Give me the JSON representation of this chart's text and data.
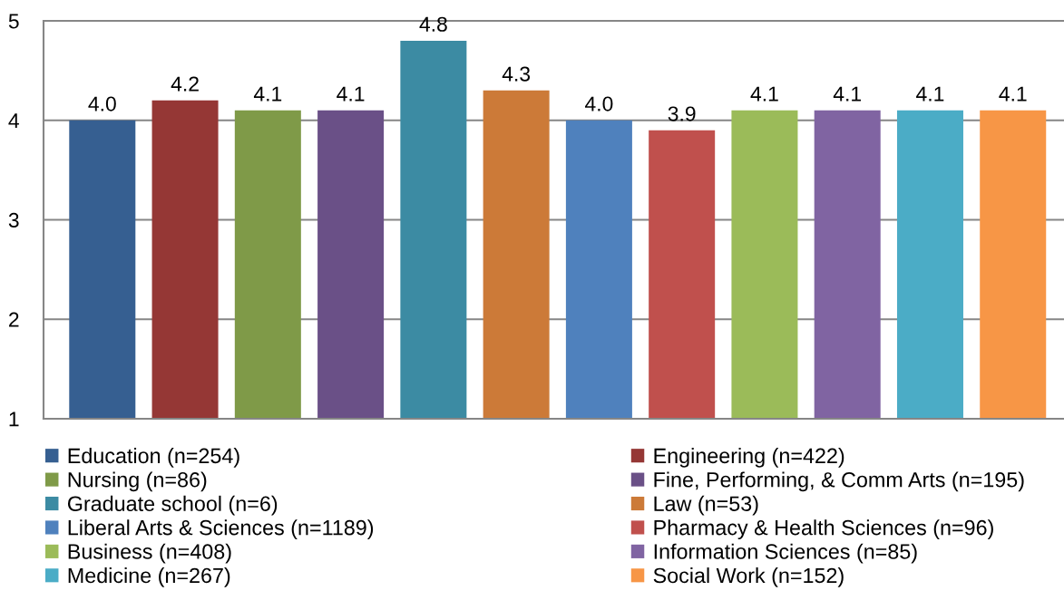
{
  "chart_data": {
    "type": "bar",
    "categories": [
      null
    ],
    "ylim": [
      1,
      5
    ],
    "yticks": [
      1,
      2,
      3,
      4,
      5
    ],
    "grid": "y",
    "legend": "bottom",
    "series": [
      {
        "name": "Education (n=254)",
        "color": "#365F91",
        "values": [
          4.0
        ],
        "value_labels": [
          "4.0"
        ]
      },
      {
        "name": "Engineering (n=422)",
        "color": "#953735",
        "values": [
          4.2
        ],
        "value_labels": [
          "4.2"
        ]
      },
      {
        "name": "Nursing (n=86)",
        "color": "#7F9A48",
        "values": [
          4.1
        ],
        "value_labels": [
          "4.1"
        ]
      },
      {
        "name": "Fine, Performing, & Comm Arts (n=195)",
        "color": "#6A5087",
        "values": [
          4.1
        ],
        "value_labels": [
          "4.1"
        ]
      },
      {
        "name": "Graduate school (n=6)",
        "color": "#3C8BA3",
        "values": [
          4.8
        ],
        "value_labels": [
          "4.8"
        ]
      },
      {
        "name": "Law (n=53)",
        "color": "#CC7A38",
        "values": [
          4.3
        ],
        "value_labels": [
          "4.3"
        ]
      },
      {
        "name": "Liberal Arts & Sciences (n=1189)",
        "color": "#4F81BD",
        "values": [
          4.0
        ],
        "value_labels": [
          "4.0"
        ]
      },
      {
        "name": "Pharmacy & Health Sciences (n=96)",
        "color": "#C0504D",
        "values": [
          3.9
        ],
        "value_labels": [
          "3.9"
        ]
      },
      {
        "name": "Business (n=408)",
        "color": "#9BBB59",
        "values": [
          4.1
        ],
        "value_labels": [
          "4.1"
        ]
      },
      {
        "name": "Information Sciences (n=85)",
        "color": "#8064A2",
        "values": [
          4.1
        ],
        "value_labels": [
          "4.1"
        ]
      },
      {
        "name": "Medicine (n=267)",
        "color": "#4BACC6",
        "values": [
          4.1
        ],
        "value_labels": [
          "4.1"
        ]
      },
      {
        "name": "Social Work (n=152)",
        "color": "#F79646",
        "values": [
          4.1
        ],
        "value_labels": [
          "4.1"
        ]
      }
    ]
  }
}
